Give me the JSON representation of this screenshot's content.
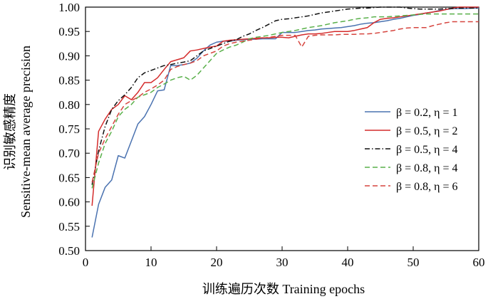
{
  "chart_data": {
    "type": "line",
    "xlabel": "训练遍历次数 Training epochs",
    "ylabel_top": "识别敏感精度",
    "ylabel_bottom": "Sensitive-mean average precision",
    "xlim": [
      0,
      60
    ],
    "ylim": [
      0.5,
      1.0
    ],
    "xticks": [
      0,
      10,
      20,
      30,
      40,
      50,
      60
    ],
    "yticks": [
      0.5,
      0.55,
      0.6,
      0.65,
      0.7,
      0.75,
      0.8,
      0.85,
      0.9,
      0.95,
      1.0
    ],
    "xtick_labels": [
      "0",
      "10",
      "20",
      "30",
      "40",
      "50",
      "60"
    ],
    "ytick_labels": [
      "0.50",
      "0.55",
      "0.60",
      "0.65",
      "0.70",
      "0.75",
      "0.80",
      "0.85",
      "0.90",
      "0.95",
      "1.00"
    ],
    "grid": false,
    "legend_position": "right",
    "series": [
      {
        "name": "β = 0.2, η = 1",
        "color": "#4a72b0",
        "dash": "solid",
        "x": [
          1,
          2,
          3,
          4,
          5,
          6,
          7,
          8,
          9,
          10,
          11,
          12,
          13,
          14,
          15,
          16,
          17,
          18,
          19,
          20,
          21,
          22,
          23,
          24,
          25,
          26,
          27,
          28,
          29,
          30,
          31,
          32,
          33,
          34,
          35,
          36,
          37,
          38,
          39,
          40,
          41,
          42,
          43,
          44,
          45,
          46,
          47,
          48,
          49,
          50,
          51,
          52,
          53,
          54,
          55,
          56,
          57,
          58,
          59,
          60
        ],
        "y": [
          0.527,
          0.595,
          0.63,
          0.645,
          0.695,
          0.69,
          0.725,
          0.76,
          0.775,
          0.8,
          0.828,
          0.83,
          0.88,
          0.88,
          0.882,
          0.885,
          0.895,
          0.91,
          0.922,
          0.928,
          0.93,
          0.93,
          0.932,
          0.933,
          0.934,
          0.934,
          0.935,
          0.935,
          0.935,
          0.948,
          0.948,
          0.948,
          0.95,
          0.952,
          0.953,
          0.955,
          0.956,
          0.957,
          0.958,
          0.96,
          0.962,
          0.965,
          0.967,
          0.968,
          0.97,
          0.972,
          0.975,
          0.977,
          0.98,
          0.983,
          0.985,
          0.988,
          0.99,
          0.993,
          0.995,
          0.997,
          0.997,
          0.997,
          0.998,
          0.998
        ]
      },
      {
        "name": "β = 0.5, η = 2",
        "color": "#d42b2b",
        "dash": "solid",
        "x": [
          1,
          2,
          3,
          4,
          5,
          6,
          7,
          8,
          9,
          10,
          11,
          12,
          13,
          14,
          15,
          16,
          17,
          18,
          19,
          20,
          21,
          22,
          23,
          24,
          25,
          26,
          27,
          28,
          29,
          30,
          31,
          32,
          33,
          34,
          35,
          36,
          37,
          38,
          39,
          40,
          41,
          42,
          43,
          44,
          45,
          46,
          47,
          48,
          49,
          50,
          51,
          52,
          53,
          54,
          55,
          56,
          57,
          58,
          59,
          60
        ],
        "y": [
          0.592,
          0.745,
          0.77,
          0.79,
          0.8,
          0.818,
          0.81,
          0.825,
          0.845,
          0.845,
          0.855,
          0.872,
          0.888,
          0.892,
          0.896,
          0.91,
          0.912,
          0.915,
          0.918,
          0.92,
          0.93,
          0.932,
          0.933,
          0.934,
          0.935,
          0.936,
          0.937,
          0.937,
          0.938,
          0.938,
          0.937,
          0.94,
          0.943,
          0.945,
          0.945,
          0.946,
          0.948,
          0.95,
          0.95,
          0.95,
          0.952,
          0.955,
          0.958,
          0.968,
          0.975,
          0.977,
          0.978,
          0.98,
          0.982,
          0.984,
          0.986,
          0.988,
          0.99,
          0.992,
          0.995,
          0.998,
          1.0,
          1.0,
          1.0,
          1.0
        ]
      },
      {
        "name": "β = 0.5, η = 4",
        "color": "#111111",
        "dash": "dashdot",
        "x": [
          1,
          2,
          3,
          4,
          5,
          6,
          7,
          8,
          9,
          10,
          11,
          12,
          13,
          14,
          15,
          16,
          17,
          18,
          19,
          20,
          21,
          22,
          23,
          24,
          25,
          26,
          27,
          28,
          29,
          30,
          31,
          32,
          33,
          34,
          35,
          36,
          37,
          38,
          39,
          40,
          41,
          42,
          43,
          44,
          45,
          46,
          47,
          48,
          49,
          50,
          51,
          52,
          53,
          54,
          55,
          56,
          57,
          58,
          59,
          60
        ],
        "y": [
          0.635,
          0.705,
          0.755,
          0.79,
          0.808,
          0.82,
          0.835,
          0.855,
          0.865,
          0.87,
          0.875,
          0.88,
          0.882,
          0.885,
          0.887,
          0.89,
          0.9,
          0.91,
          0.915,
          0.92,
          0.925,
          0.93,
          0.933,
          0.94,
          0.945,
          0.952,
          0.958,
          0.965,
          0.972,
          0.975,
          0.976,
          0.978,
          0.98,
          0.982,
          0.985,
          0.988,
          0.99,
          0.992,
          0.994,
          0.996,
          0.997,
          0.998,
          0.998,
          0.999,
          1.0,
          1.0,
          1.0,
          1.0,
          0.998,
          0.997,
          0.996,
          0.996,
          0.996,
          0.996,
          0.997,
          0.997,
          0.998,
          0.998,
          0.998,
          0.998
        ]
      },
      {
        "name": "β = 0.8, η = 4",
        "color": "#59b04a",
        "dash": "dash",
        "x": [
          1,
          2,
          3,
          4,
          5,
          6,
          7,
          8,
          9,
          10,
          11,
          12,
          13,
          14,
          15,
          16,
          17,
          18,
          19,
          20,
          21,
          22,
          23,
          24,
          25,
          26,
          27,
          28,
          29,
          30,
          31,
          32,
          33,
          34,
          35,
          36,
          37,
          38,
          39,
          40,
          41,
          42,
          43,
          44,
          45,
          46,
          47,
          48,
          49,
          50,
          51,
          52,
          53,
          54,
          55,
          56,
          57,
          58,
          59,
          60
        ],
        "y": [
          0.628,
          0.68,
          0.72,
          0.745,
          0.775,
          0.79,
          0.8,
          0.815,
          0.82,
          0.825,
          0.835,
          0.842,
          0.85,
          0.855,
          0.858,
          0.85,
          0.86,
          0.875,
          0.89,
          0.905,
          0.912,
          0.918,
          0.922,
          0.928,
          0.935,
          0.938,
          0.94,
          0.942,
          0.945,
          0.948,
          0.95,
          0.952,
          0.955,
          0.958,
          0.96,
          0.962,
          0.965,
          0.968,
          0.97,
          0.972,
          0.975,
          0.977,
          0.978,
          0.98,
          0.98,
          0.98,
          0.981,
          0.982,
          0.983,
          0.984,
          0.985,
          0.986,
          0.986,
          0.986,
          0.986,
          0.986,
          0.986,
          0.986,
          0.986,
          0.986
        ]
      },
      {
        "name": "β = 0.8, η = 6",
        "color": "#d6453f",
        "dash": "dash",
        "x": [
          1,
          2,
          3,
          4,
          5,
          6,
          7,
          8,
          9,
          10,
          11,
          12,
          13,
          14,
          15,
          16,
          17,
          18,
          19,
          20,
          21,
          22,
          23,
          24,
          25,
          26,
          27,
          28,
          29,
          30,
          31,
          32,
          33,
          34,
          35,
          36,
          37,
          38,
          39,
          40,
          41,
          42,
          43,
          44,
          45,
          46,
          47,
          48,
          49,
          50,
          51,
          52,
          53,
          54,
          55,
          56,
          57,
          58,
          59,
          60
        ],
        "y": [
          0.64,
          0.7,
          0.73,
          0.755,
          0.78,
          0.8,
          0.808,
          0.815,
          0.825,
          0.832,
          0.84,
          0.85,
          0.872,
          0.878,
          0.882,
          0.885,
          0.89,
          0.9,
          0.905,
          0.91,
          0.92,
          0.925,
          0.928,
          0.93,
          0.932,
          0.934,
          0.936,
          0.938,
          0.94,
          0.942,
          0.942,
          0.942,
          0.918,
          0.94,
          0.942,
          0.943,
          0.943,
          0.943,
          0.944,
          0.944,
          0.944,
          0.945,
          0.945,
          0.946,
          0.948,
          0.95,
          0.952,
          0.955,
          0.957,
          0.958,
          0.958,
          0.958,
          0.962,
          0.965,
          0.968,
          0.97,
          0.97,
          0.97,
          0.97,
          0.97
        ]
      }
    ]
  }
}
